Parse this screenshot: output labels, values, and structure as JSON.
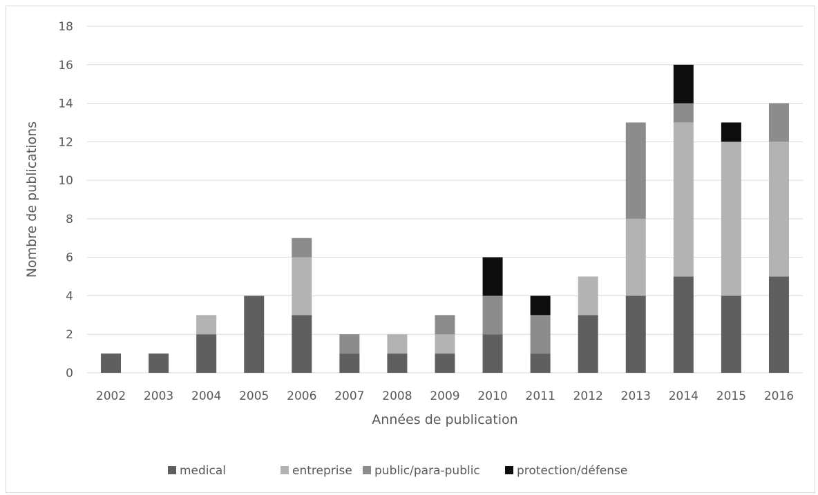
{
  "chart_data": {
    "type": "bar",
    "stacked": true,
    "xlabel": "Années de publication",
    "ylabel": "Nombre de publications",
    "ylim": [
      0,
      18
    ],
    "yticks": [
      0,
      2,
      4,
      6,
      8,
      10,
      12,
      14,
      16,
      18
    ],
    "grid": true,
    "legend_position": "bottom",
    "categories": [
      "2002",
      "2003",
      "2004",
      "2005",
      "2006",
      "2007",
      "2008",
      "2009",
      "2010",
      "2011",
      "2012",
      "2013",
      "2014",
      "2015",
      "2016"
    ],
    "series": [
      {
        "name": "medical",
        "color": "#5f5f5f",
        "values": [
          1,
          1,
          2,
          4,
          3,
          1,
          1,
          1,
          2,
          1,
          3,
          4,
          5,
          4,
          5
        ]
      },
      {
        "name": "entreprise",
        "color": "#b3b3b3",
        "values": [
          0,
          0,
          1,
          0,
          3,
          0,
          1,
          1,
          0,
          0,
          2,
          4,
          8,
          8,
          7
        ]
      },
      {
        "name": "public/para-public",
        "color": "#8c8c8c",
        "values": [
          0,
          0,
          0,
          0,
          1,
          1,
          0,
          1,
          2,
          2,
          0,
          5,
          1,
          0,
          2
        ]
      },
      {
        "name": "protection/défense",
        "color": "#0d0d0d",
        "values": [
          0,
          0,
          0,
          0,
          0,
          0,
          0,
          0,
          2,
          1,
          0,
          0,
          2,
          1,
          0
        ]
      }
    ]
  }
}
